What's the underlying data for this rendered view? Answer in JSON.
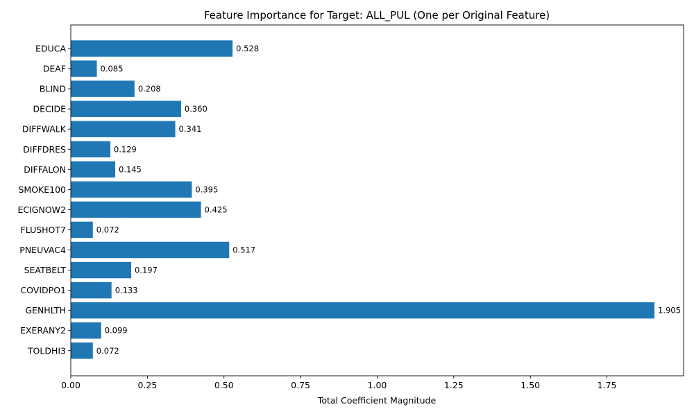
{
  "chart_data": {
    "type": "bar",
    "orientation": "horizontal",
    "title": "Feature Importance for Target: ALL_PUL (One per Original Feature)",
    "xlabel": "Total Coefficient Magnitude",
    "ylabel": "",
    "categories": [
      "EDUCA",
      "DEAF",
      "BLIND",
      "DECIDE",
      "DIFFWALK",
      "DIFFDRES",
      "DIFFALON",
      "SMOKE100",
      "ECIGNOW2",
      "FLUSHOT7",
      "PNEUVAC4",
      "SEATBELT",
      "COVIDPO1",
      "GENHLTH",
      "EXERANY2",
      "TOLDHI3"
    ],
    "values": [
      0.528,
      0.085,
      0.208,
      0.36,
      0.341,
      0.129,
      0.145,
      0.395,
      0.425,
      0.072,
      0.517,
      0.197,
      0.133,
      1.905,
      0.099,
      0.072
    ],
    "value_labels": [
      "0.528",
      "0.085",
      "0.208",
      "0.360",
      "0.341",
      "0.129",
      "0.145",
      "0.395",
      "0.425",
      "0.072",
      "0.517",
      "0.197",
      "0.133",
      "1.905",
      "0.099",
      "0.072"
    ],
    "xlim": [
      0,
      2.0
    ],
    "xticks": [
      0,
      0.25,
      0.5,
      0.75,
      1.0,
      1.25,
      1.5,
      1.75
    ],
    "xtick_labels": [
      "0.00",
      "0.25",
      "0.50",
      "0.75",
      "1.00",
      "1.25",
      "1.50",
      "1.75"
    ],
    "bar_color": "#1f77b4",
    "grid": false,
    "legend": "none"
  }
}
